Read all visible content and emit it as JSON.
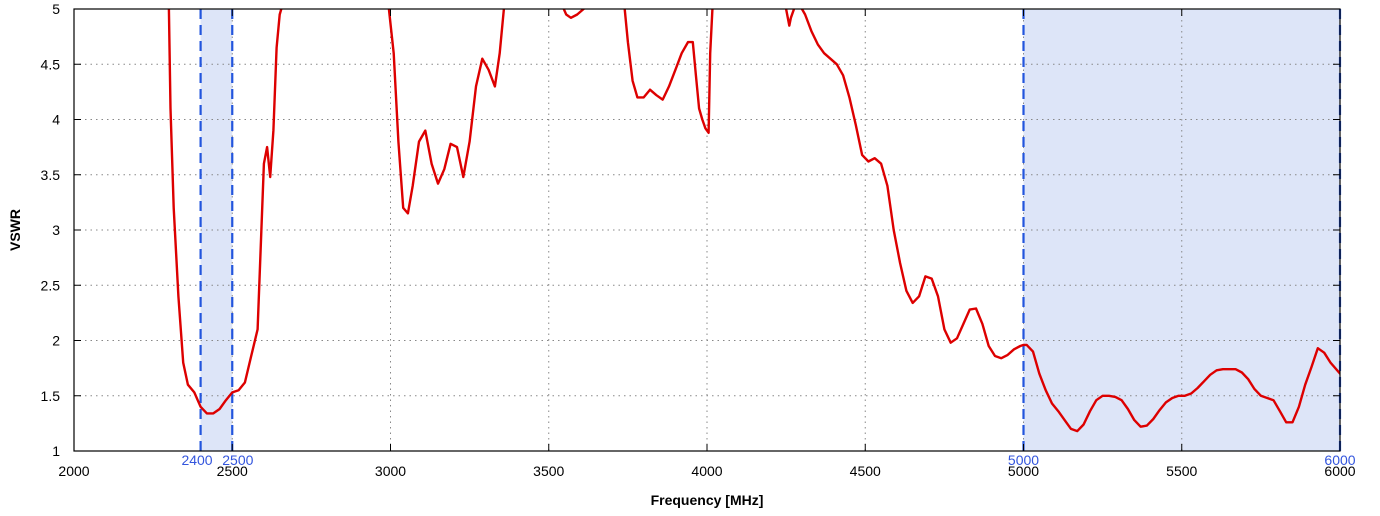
{
  "chart_data": {
    "type": "line",
    "xlabel": "Frequency [MHz]",
    "ylabel": "VSWR",
    "xlim": [
      2000,
      6000
    ],
    "ylim": [
      1,
      5
    ],
    "x_ticks": [
      "2000",
      "2500",
      "3000",
      "3500",
      "4000",
      "4500",
      "5000",
      "5500",
      "6000"
    ],
    "y_ticks": [
      "1",
      "1.5",
      "2",
      "2.5",
      "3",
      "3.5",
      "4",
      "4.5",
      "5"
    ],
    "grid": true,
    "bands": [
      {
        "from": 2400,
        "to": 2500,
        "labels": [
          "2400",
          "2500"
        ]
      },
      {
        "from": 5000,
        "to": 6000,
        "labels": [
          "5000",
          "6000"
        ]
      }
    ],
    "colors": {
      "line": "#dd0000",
      "band_fill": "#dde5f8",
      "band_edge": "#2255dd",
      "grid": "#888888"
    },
    "series": [
      {
        "x": [
          2300,
          2305,
          2315,
          2330,
          2345,
          2360,
          2380,
          2400,
          2420,
          2440,
          2460,
          2480,
          2500,
          2520,
          2540,
          2560,
          2580,
          2600,
          2610,
          2620,
          2630,
          2640,
          2650,
          2660
        ],
        "y": [
          5.0,
          4.1,
          3.2,
          2.4,
          1.8,
          1.6,
          1.53,
          1.4,
          1.34,
          1.34,
          1.38,
          1.46,
          1.53,
          1.55,
          1.62,
          1.86,
          2.1,
          3.6,
          3.75,
          3.48,
          3.9,
          4.65,
          4.95,
          5.05
        ]
      },
      {
        "x": [
          2995,
          3010,
          3025,
          3040,
          3055,
          3070,
          3090,
          3110,
          3130,
          3150,
          3170,
          3190,
          3210,
          3230,
          3250,
          3270,
          3290,
          3310,
          3330,
          3345,
          3360
        ],
        "y": [
          5.0,
          4.6,
          3.8,
          3.2,
          3.15,
          3.4,
          3.8,
          3.9,
          3.6,
          3.42,
          3.55,
          3.78,
          3.75,
          3.48,
          3.8,
          4.3,
          4.55,
          4.45,
          4.3,
          4.6,
          5.05
        ]
      },
      {
        "x": [
          3540,
          3555,
          3570,
          3590,
          3610,
          3625
        ],
        "y": [
          5.05,
          4.95,
          4.92,
          4.95,
          5.0,
          5.05
        ]
      },
      {
        "x": [
          3740,
          3750,
          3765,
          3780,
          3800,
          3820,
          3840,
          3860,
          3880,
          3900,
          3920,
          3940,
          3955,
          3965,
          3975,
          3985,
          3995,
          4005,
          4010,
          4018
        ],
        "y": [
          5.0,
          4.7,
          4.35,
          4.2,
          4.2,
          4.27,
          4.22,
          4.18,
          4.3,
          4.45,
          4.6,
          4.7,
          4.7,
          4.4,
          4.1,
          4.0,
          3.92,
          3.88,
          4.6,
          5.05
        ]
      },
      {
        "x": [
          4250,
          4260,
          4265,
          4275,
          4282
        ],
        "y": [
          5.0,
          4.85,
          4.92,
          5.0,
          5.05
        ]
      },
      {
        "x": [
          4290,
          4310,
          4330,
          4350,
          4370,
          4390,
          4410,
          4430,
          4450,
          4470,
          4490,
          4510,
          4530,
          4550,
          4570,
          4590,
          4610,
          4630,
          4650,
          4670,
          4690,
          4710,
          4730,
          4750,
          4770,
          4790,
          4810,
          4830,
          4850,
          4870,
          4890,
          4910,
          4930,
          4950,
          4970,
          4990,
          5000,
          5010,
          5030,
          5050,
          5070,
          5090,
          5110,
          5130,
          5150,
          5170,
          5190,
          5210,
          5230,
          5250,
          5270,
          5290,
          5310,
          5330,
          5350,
          5370,
          5390,
          5410,
          5430,
          5450,
          5470,
          5490,
          5510,
          5530,
          5550,
          5570,
          5590,
          5610,
          5630,
          5650,
          5670,
          5690,
          5710,
          5730,
          5750,
          5770,
          5790,
          5810,
          5830,
          5850,
          5870,
          5890,
          5910,
          5930,
          5950,
          5970,
          6000
        ],
        "y": [
          5.05,
          4.95,
          4.8,
          4.68,
          4.6,
          4.55,
          4.5,
          4.4,
          4.2,
          3.95,
          3.68,
          3.62,
          3.65,
          3.6,
          3.4,
          3.0,
          2.7,
          2.45,
          2.34,
          2.4,
          2.58,
          2.56,
          2.4,
          2.1,
          1.98,
          2.02,
          2.15,
          2.28,
          2.29,
          2.15,
          1.95,
          1.86,
          1.84,
          1.87,
          1.92,
          1.95,
          1.96,
          1.96,
          1.9,
          1.7,
          1.55,
          1.43,
          1.36,
          1.28,
          1.2,
          1.18,
          1.24,
          1.36,
          1.46,
          1.5,
          1.5,
          1.49,
          1.46,
          1.38,
          1.28,
          1.22,
          1.23,
          1.29,
          1.37,
          1.44,
          1.48,
          1.5,
          1.5,
          1.52,
          1.57,
          1.63,
          1.69,
          1.73,
          1.74,
          1.74,
          1.74,
          1.71,
          1.65,
          1.56,
          1.5,
          1.48,
          1.46,
          1.36,
          1.26,
          1.26,
          1.4,
          1.6,
          1.76,
          1.93,
          1.89,
          1.8,
          1.7
        ]
      }
    ]
  }
}
